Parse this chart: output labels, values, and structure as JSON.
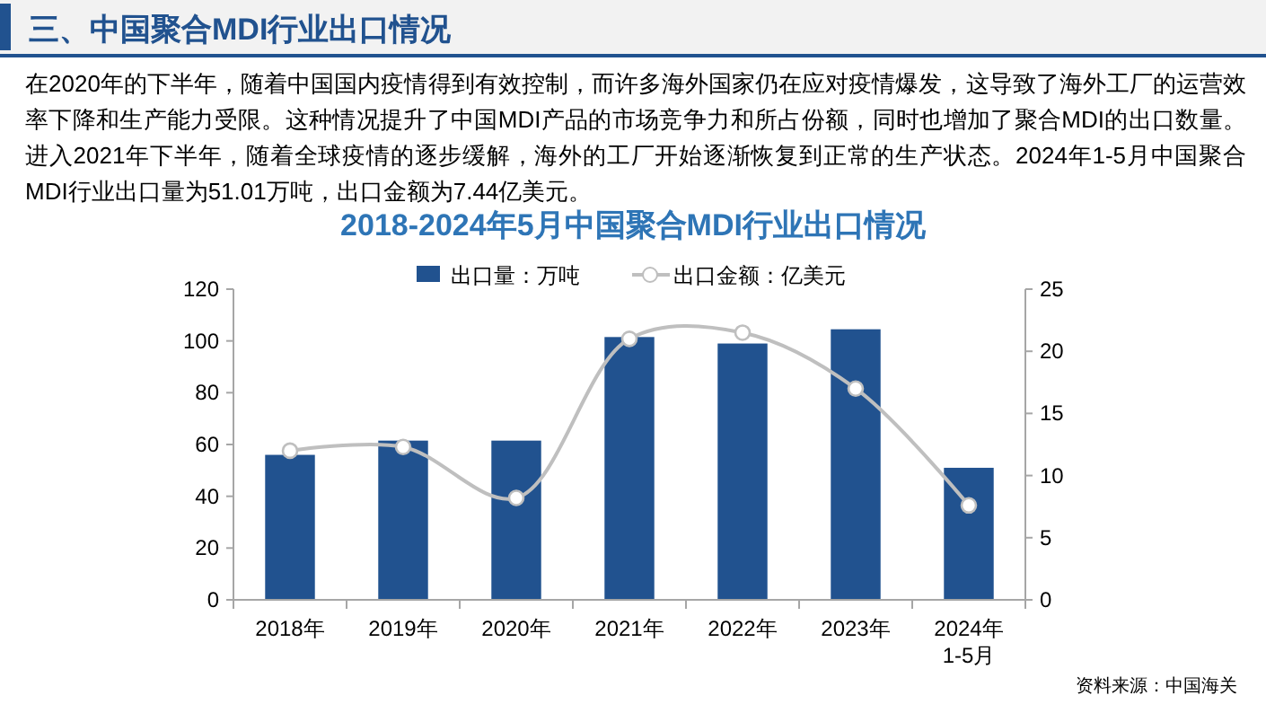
{
  "chart_data": {
    "type": "bar",
    "title": "2018-2024年5月中国聚合MDI行业出口情况",
    "subtitle": "三、中国聚合MDI行业出口情况",
    "annotations": [
      "在2020年的下半年，随着中国国内疫情得到有效控制，而许多海外国家仍在应对疫情爆发，这导致了海外工厂的运营效率下降和生产能力受限。这种情况提升了中国MDI产品的市场竞争力和所占份额，同时也增加了聚合MDI的出口数量。进入2021年下半年，随着全球疫情的逐步缓解，海外的工厂开始逐渐恢复到正常的生产状态。2024年1-5月中国聚合MDI行业出口量为51.01万吨，出口金额为7.44亿美元。",
      "资料来源：中国海关"
    ],
    "categories": [
      "2018年",
      "2019年",
      "2020年",
      "2021年",
      "2022年",
      "2023年",
      "2024年\n1-5月"
    ],
    "series": [
      {
        "name": "出口量：万吨",
        "color": "#21528f",
        "values": [
          56,
          61.5,
          61.5,
          101.5,
          99,
          104.5,
          51
        ]
      },
      {
        "name": "出口金额：亿美元",
        "type": "line",
        "axis": "y2",
        "color": "#bfbfbf",
        "values": [
          12,
          12.3,
          8.2,
          21,
          21.5,
          17,
          7.6
        ]
      }
    ],
    "ylim": [
      0,
      120
    ],
    "yticks": [
      0,
      20,
      40,
      60,
      80,
      100,
      120
    ],
    "y2lim": [
      0,
      25
    ],
    "y2ticks": [
      0,
      5,
      10,
      15,
      20,
      25
    ],
    "legend": "top",
    "marker": "circle",
    "grid": false
  }
}
